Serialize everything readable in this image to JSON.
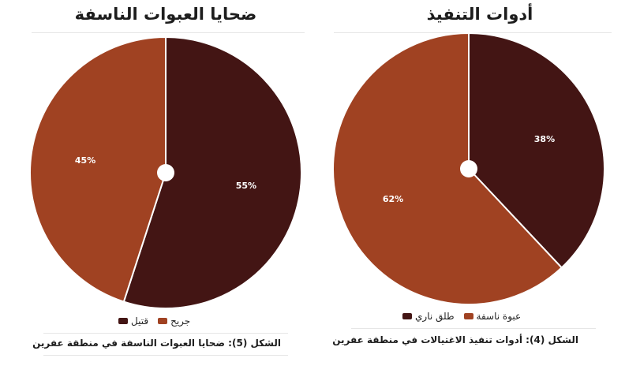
{
  "chart_data": [
    {
      "type": "pie",
      "title": "ضحايا العبوات الناسفة",
      "categories": [
        "قتيل",
        "جريح"
      ],
      "values": [
        55,
        45
      ],
      "labels": [
        "55%",
        "45%"
      ],
      "colors": [
        "#431514",
        "#a04222"
      ],
      "legend_placement": "bottom",
      "caption": "الشكل (5): ضحايا العبوات الناسفة في منطقة عفرين"
    },
    {
      "type": "pie",
      "title": "أدوات التنفيذ",
      "categories": [
        "طلق ناري",
        "عبوة ناسفة"
      ],
      "values": [
        38,
        62
      ],
      "labels": [
        "38%",
        "62%"
      ],
      "colors": [
        "#431514",
        "#a04222"
      ],
      "legend_placement": "bottom",
      "caption": "الشكل (4): أدوات تنفيذ الاغتيالات في منطقة عفرين"
    }
  ]
}
